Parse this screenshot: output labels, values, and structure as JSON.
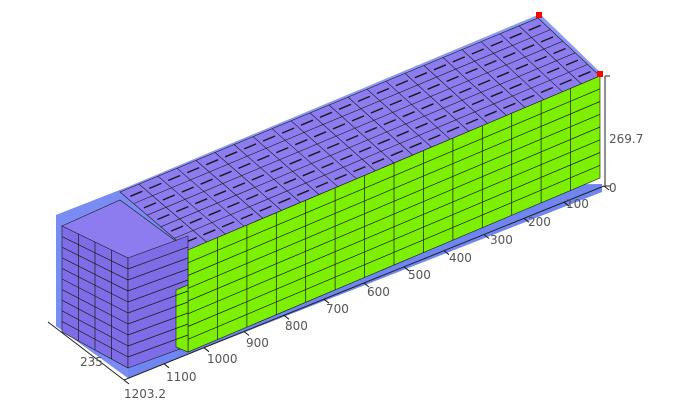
{
  "viewer": {
    "container": {
      "length": "1203.2",
      "width": "235",
      "height": "269.7"
    },
    "length_ticks": [
      "100",
      "200",
      "300",
      "400",
      "500",
      "600",
      "700",
      "800",
      "900",
      "1000",
      "1100",
      "1203.2"
    ],
    "width_tick": "235",
    "height_ticks": [
      "0",
      "269.7"
    ]
  },
  "colors": {
    "container_floor": "#6f86f2",
    "container_wall": "#8090f5",
    "box_top": "#8c7cf0",
    "box_side_purple": "#7f6de8",
    "box_side_green": "#7cf000",
    "edge": "#1a1a1a",
    "corner_marker": "#ff0000"
  }
}
